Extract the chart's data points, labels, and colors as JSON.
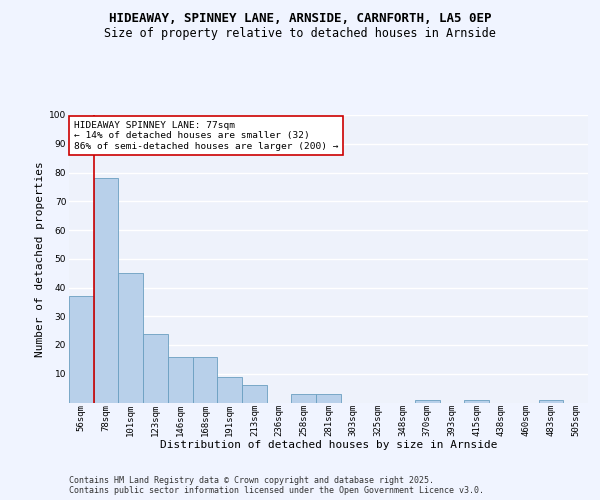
{
  "title1": "HIDEAWAY, SPINNEY LANE, ARNSIDE, CARNFORTH, LA5 0EP",
  "title2": "Size of property relative to detached houses in Arnside",
  "xlabel": "Distribution of detached houses by size in Arnside",
  "ylabel": "Number of detached properties",
  "categories": [
    "56sqm",
    "78sqm",
    "101sqm",
    "123sqm",
    "146sqm",
    "168sqm",
    "191sqm",
    "213sqm",
    "236sqm",
    "258sqm",
    "281sqm",
    "303sqm",
    "325sqm",
    "348sqm",
    "370sqm",
    "393sqm",
    "415sqm",
    "438sqm",
    "460sqm",
    "483sqm",
    "505sqm"
  ],
  "values": [
    37,
    78,
    45,
    24,
    16,
    16,
    9,
    6,
    0,
    3,
    3,
    0,
    0,
    0,
    1,
    0,
    1,
    0,
    0,
    1,
    0
  ],
  "bar_color": "#b8d0ea",
  "bar_edge_color": "#6a9fc0",
  "background_color": "#eef2fb",
  "grid_color": "#ffffff",
  "vline_x": 0.5,
  "vline_color": "#cc0000",
  "annotation_text": "HIDEAWAY SPINNEY LANE: 77sqm\n← 14% of detached houses are smaller (32)\n86% of semi-detached houses are larger (200) →",
  "annotation_box_facecolor": "#ffffff",
  "annotation_box_edgecolor": "#cc0000",
  "ylim": [
    0,
    100
  ],
  "yticks": [
    0,
    10,
    20,
    30,
    40,
    50,
    60,
    70,
    80,
    90,
    100
  ],
  "footer": "Contains HM Land Registry data © Crown copyright and database right 2025.\nContains public sector information licensed under the Open Government Licence v3.0.",
  "title_fontsize": 9,
  "subtitle_fontsize": 8.5,
  "axis_label_fontsize": 8,
  "tick_fontsize": 6.5,
  "annotation_fontsize": 6.8,
  "footer_fontsize": 6.0
}
